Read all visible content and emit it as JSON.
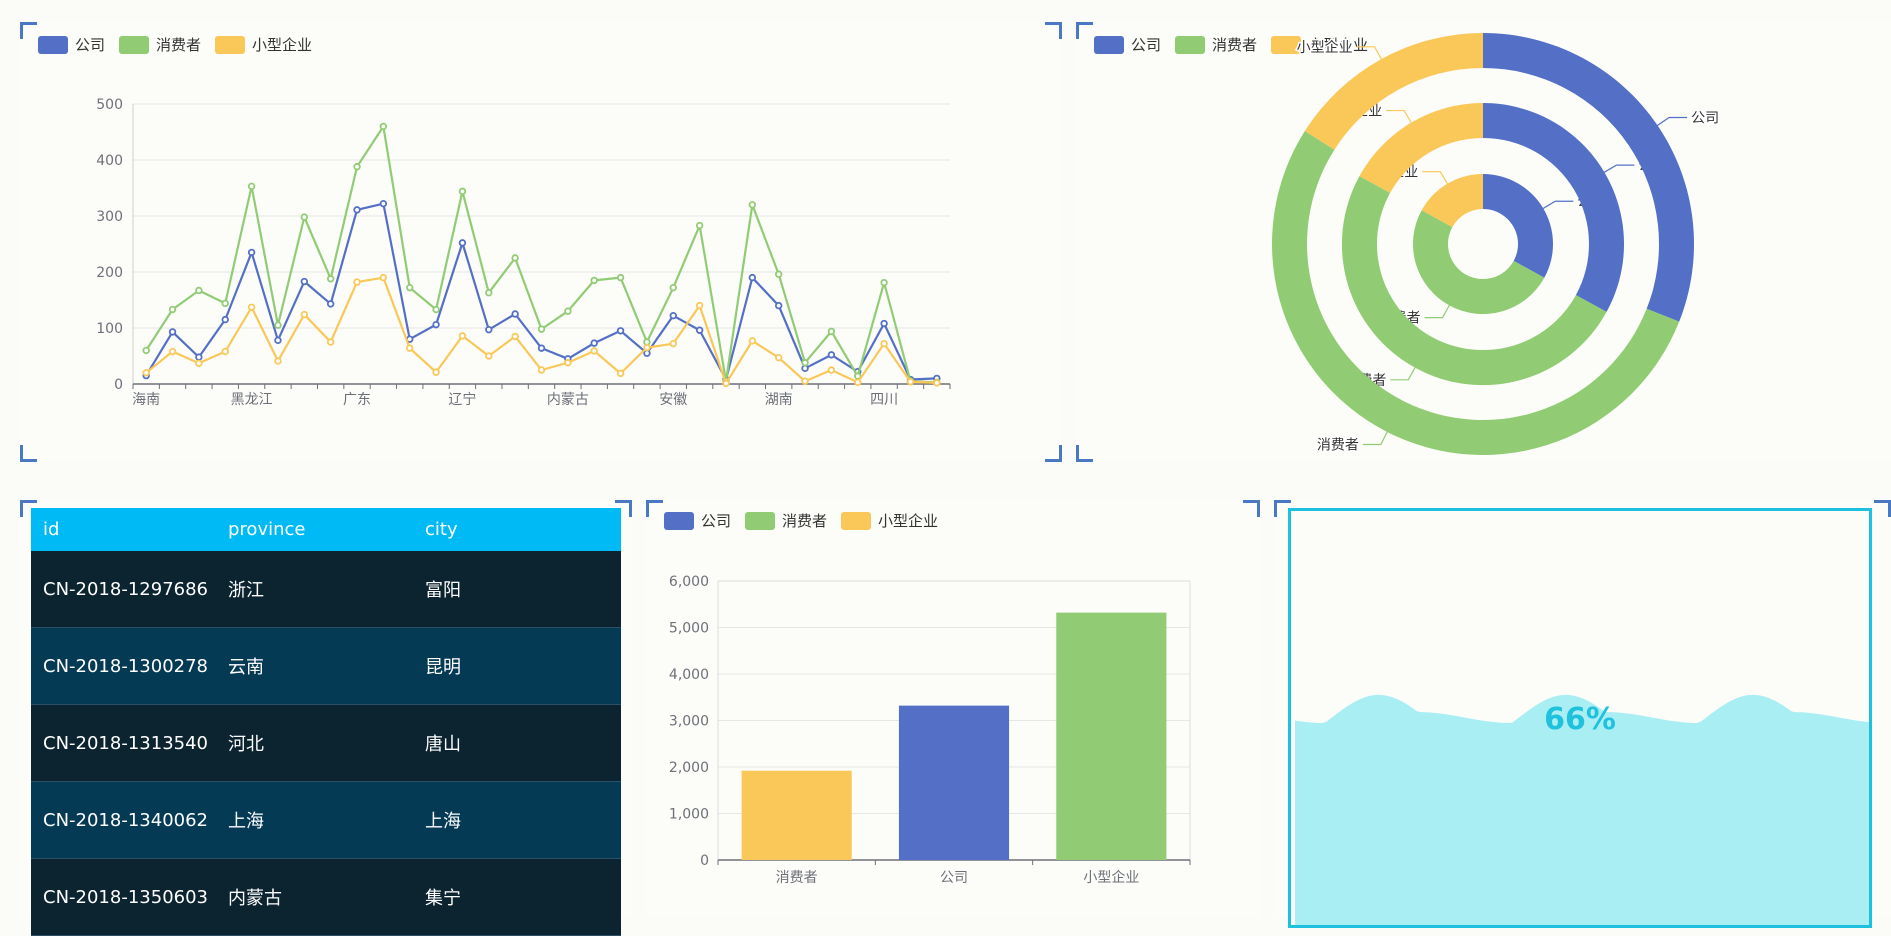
{
  "colors": {
    "company": "#5470c6",
    "consumer": "#91cc75",
    "small_business": "#fac858",
    "table_header": "#00baf5",
    "liquid": "#a8eef3"
  },
  "legend": {
    "company": "公司",
    "consumer": "消费者",
    "small_business": "小型企业"
  },
  "table": {
    "headers": {
      "id": "id",
      "province": "province",
      "city": "city"
    },
    "rows": [
      {
        "id": "CN-2018-1297686",
        "province": "浙江",
        "city": "富阳"
      },
      {
        "id": "CN-2018-1300278",
        "province": "云南",
        "city": "昆明"
      },
      {
        "id": "CN-2018-1313540",
        "province": "河北",
        "city": "唐山"
      },
      {
        "id": "CN-2018-1340062",
        "province": "上海",
        "city": "上海"
      },
      {
        "id": "CN-2018-1350603",
        "province": "内蒙古",
        "city": "集宁"
      }
    ]
  },
  "liquid": {
    "value": 0.66,
    "label": "66%"
  },
  "chart_data": [
    {
      "type": "line",
      "x_tick_labels": [
        "海南",
        "黑龙江",
        "广东",
        "辽宁",
        "内蒙古",
        "安徽",
        "湖南",
        "四川"
      ],
      "x_tick_every": 4,
      "ylim": [
        0,
        500
      ],
      "yticks": [
        0,
        100,
        200,
        300,
        400,
        500
      ],
      "grid": true,
      "legend_position": "top-left",
      "series": [
        {
          "name": "公司",
          "color": "#5470c6",
          "values": [
            15,
            93,
            48,
            115,
            235,
            78,
            183,
            143,
            311,
            322,
            80,
            106,
            252,
            97,
            125,
            64,
            45,
            73,
            95,
            55,
            122,
            96,
            8,
            190,
            140,
            28,
            52,
            22,
            108,
            8,
            10
          ]
        },
        {
          "name": "消费者",
          "color": "#91cc75",
          "values": [
            60,
            133,
            167,
            144,
            353,
            105,
            298,
            188,
            388,
            460,
            172,
            133,
            344,
            163,
            225,
            98,
            130,
            185,
            190,
            75,
            172,
            283,
            5,
            320,
            196,
            38,
            94,
            14,
            181,
            5,
            3
          ]
        },
        {
          "name": "小型企业",
          "color": "#fac858",
          "values": [
            20,
            58,
            37,
            58,
            137,
            41,
            124,
            75,
            182,
            190,
            64,
            21,
            86,
            50,
            85,
            25,
            38,
            59,
            19,
            65,
            72,
            140,
            1,
            77,
            47,
            5,
            25,
            3,
            72,
            4,
            2
          ]
        }
      ]
    },
    {
      "type": "pie",
      "rings": [
        {
          "values": [
            {
              "name": "公司",
              "value": 33
            },
            {
              "name": "消费者",
              "value": 50
            },
            {
              "name": "小型企业",
              "value": 17
            }
          ]
        },
        {
          "values": [
            {
              "name": "公司",
              "value": 33
            },
            {
              "name": "消费者",
              "value": 50
            },
            {
              "name": "小型企业",
              "value": 17
            }
          ]
        },
        {
          "values": [
            {
              "name": "公司",
              "value": 31
            },
            {
              "name": "消费者",
              "value": 53
            },
            {
              "name": "小型企业",
              "value": 16
            }
          ]
        }
      ],
      "legend_position": "top-left"
    },
    {
      "type": "bar",
      "categories": [
        "消费者",
        "公司",
        "小型企业"
      ],
      "values": [
        1920,
        3320,
        5320
      ],
      "bar_colors": [
        "#fac858",
        "#5470c6",
        "#91cc75"
      ],
      "ylim": [
        0,
        6000
      ],
      "yticks": [
        0,
        1000,
        2000,
        3000,
        4000,
        5000,
        6000
      ],
      "ytick_labels": [
        "0",
        "1,000",
        "2,000",
        "3,000",
        "4,000",
        "5,000",
        "6,000"
      ],
      "grid": true,
      "legend_position": "top-left"
    }
  ]
}
